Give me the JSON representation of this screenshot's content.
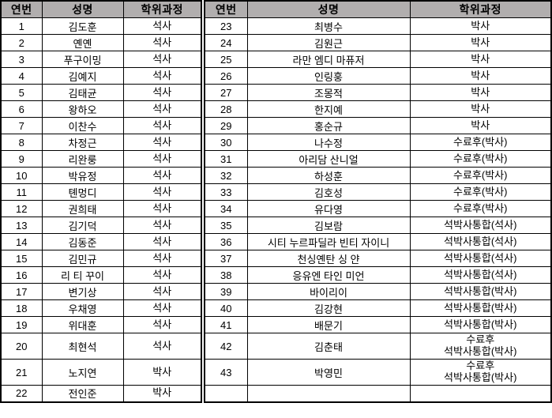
{
  "colors": {
    "header_bg": "#b1aeae",
    "border": "#000000",
    "text": "#000000",
    "background": "#ffffff"
  },
  "table": {
    "headers": {
      "no": "연번",
      "name": "성명",
      "degree": "학위과정"
    },
    "left_rows": [
      {
        "no": "1",
        "name": "김도훈",
        "degree": "석사"
      },
      {
        "no": "2",
        "name": "옌옌",
        "degree": "석사"
      },
      {
        "no": "3",
        "name": "푸구이밍",
        "degree": "석사"
      },
      {
        "no": "4",
        "name": "김예지",
        "degree": "석사"
      },
      {
        "no": "5",
        "name": "김태균",
        "degree": "석사"
      },
      {
        "no": "6",
        "name": "왕하오",
        "degree": "석사"
      },
      {
        "no": "7",
        "name": "이찬수",
        "degree": "석사"
      },
      {
        "no": "8",
        "name": "차정근",
        "degree": "석사"
      },
      {
        "no": "9",
        "name": "리완룽",
        "degree": "석사"
      },
      {
        "no": "10",
        "name": "박유정",
        "degree": "석사"
      },
      {
        "no": "11",
        "name": "톈멍디",
        "degree": "석사"
      },
      {
        "no": "12",
        "name": "권희태",
        "degree": "석사"
      },
      {
        "no": "13",
        "name": "김기덕",
        "degree": "석사"
      },
      {
        "no": "14",
        "name": "김동준",
        "degree": "석사"
      },
      {
        "no": "15",
        "name": "김민규",
        "degree": "석사"
      },
      {
        "no": "16",
        "name": "리 티 꾸이",
        "degree": "석사"
      },
      {
        "no": "17",
        "name": "변기상",
        "degree": "석사"
      },
      {
        "no": "18",
        "name": "우채영",
        "degree": "석사"
      },
      {
        "no": "19",
        "name": "위대훈",
        "degree": "석사"
      },
      {
        "no": "20",
        "name": "최현석",
        "degree": "석사"
      },
      {
        "no": "21",
        "name": "노지연",
        "degree": "박사"
      },
      {
        "no": "22",
        "name": "전인준",
        "degree": "박사"
      }
    ],
    "right_rows": [
      {
        "no": "23",
        "name": "최병수",
        "degree": "박사"
      },
      {
        "no": "24",
        "name": "김원근",
        "degree": "박사"
      },
      {
        "no": "25",
        "name": "라만 엠디 마퓨저",
        "degree": "박사"
      },
      {
        "no": "26",
        "name": "인링훙",
        "degree": "박사"
      },
      {
        "no": "27",
        "name": "조몽적",
        "degree": "박사"
      },
      {
        "no": "28",
        "name": "한지예",
        "degree": "박사"
      },
      {
        "no": "29",
        "name": "홍순규",
        "degree": "박사"
      },
      {
        "no": "30",
        "name": "나수정",
        "degree": "수료후(박사)"
      },
      {
        "no": "31",
        "name": "아리담 산니얼",
        "degree": "수료후(박사)"
      },
      {
        "no": "32",
        "name": "하성훈",
        "degree": "수료후(박사)"
      },
      {
        "no": "33",
        "name": "김호성",
        "degree": "수료후(박사)"
      },
      {
        "no": "34",
        "name": "유다영",
        "degree": "수료후(박사)"
      },
      {
        "no": "35",
        "name": "김보람",
        "degree": "석박사통합(석사)"
      },
      {
        "no": "36",
        "name": "시티 누르파딜라 빈티 자이니",
        "degree": "석박사통합(석사)"
      },
      {
        "no": "37",
        "name": "천싱옌탄 싱 얀",
        "degree": "석박사통합(석사)"
      },
      {
        "no": "38",
        "name": "응유엔 타인 미언",
        "degree": "석박사통합(석사)"
      },
      {
        "no": "39",
        "name": "바이리이",
        "degree": "석박사통합(박사)"
      },
      {
        "no": "40",
        "name": "김강현",
        "degree": "석박사통합(박사)"
      },
      {
        "no": "41",
        "name": "배문기",
        "degree": "석박사통합(박사)"
      },
      {
        "no": "42",
        "name": "김춘태",
        "degree": "수료후\n석박사통합(박사)"
      },
      {
        "no": "43",
        "name": "박영민",
        "degree": "수료후\n석박사통합(박사)"
      },
      {
        "no": "",
        "name": "",
        "degree": ""
      }
    ]
  }
}
